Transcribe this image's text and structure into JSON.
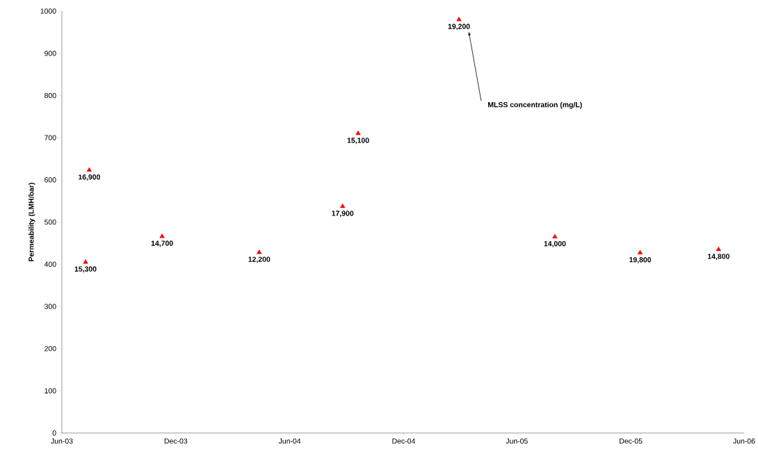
{
  "chart_data": {
    "type": "scatter",
    "ylabel": "Permeability (LMH/bar)",
    "x": [
      "2003-07-09",
      "2003-07-15",
      "2003-11-09",
      "2004-04-13",
      "2004-08-25",
      "2004-09-19",
      "2005-02-28",
      "2005-08-01",
      "2005-12-16",
      "2006-04-21"
    ],
    "series": [
      {
        "color": "#ff0000",
        "values": [
          405,
          623,
          466,
          428,
          537,
          710,
          980,
          465,
          427,
          435
        ]
      }
    ],
    "marker": "triangle",
    "xlim": [
      "2003-06-01",
      "2006-06-01"
    ],
    "xticks": [
      {
        "value": "2003-06-01",
        "label": "Jun-03"
      },
      {
        "value": "2003-12-01",
        "label": "Dec-03"
      },
      {
        "value": "2004-06-01",
        "label": "Jun-04"
      },
      {
        "value": "2004-12-01",
        "label": "Dec-04"
      },
      {
        "value": "2005-06-01",
        "label": "Jun-05"
      },
      {
        "value": "2005-12-01",
        "label": "Dec-05"
      },
      {
        "value": "2006-06-01",
        "label": "Jun-06"
      }
    ],
    "ylim": [
      0,
      1000
    ],
    "yticks": [
      0,
      100,
      200,
      300,
      400,
      500,
      600,
      700,
      800,
      900,
      1000
    ],
    "annotations": [
      {
        "text": "15,300",
        "x": "2003-07-09",
        "y": 405
      },
      {
        "text": "16,900",
        "x": "2003-07-15",
        "y": 623
      },
      {
        "text": "14,700",
        "x": "2003-11-09",
        "y": 466
      },
      {
        "text": "12,200",
        "x": "2004-04-13",
        "y": 428
      },
      {
        "text": "17,900",
        "x": "2004-08-25",
        "y": 537
      },
      {
        "text": "15,100",
        "x": "2004-09-19",
        "y": 710
      },
      {
        "text": "19,200",
        "x": "2005-02-28",
        "y": 980
      },
      {
        "text": "14,000",
        "x": "2005-08-01",
        "y": 465
      },
      {
        "text": "19,800",
        "x": "2005-12-16",
        "y": 427
      },
      {
        "text": "14,800",
        "x": "2006-04-21",
        "y": 435
      },
      "MLSS concentration (mg/L)"
    ]
  }
}
